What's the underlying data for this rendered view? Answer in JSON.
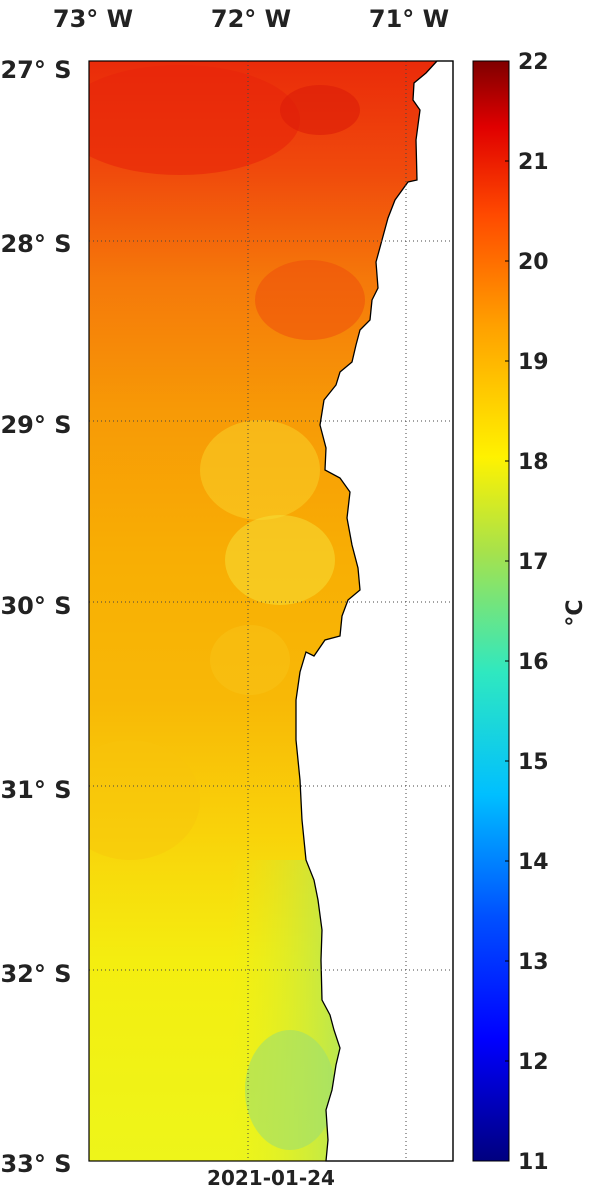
{
  "map": {
    "longitude_labels": [
      "73° W",
      "72° W",
      "71° W"
    ],
    "latitude_labels": [
      "27° S",
      "28° S",
      "29° S",
      "30° S",
      "31° S",
      "32° S",
      "33° S"
    ],
    "date": "2021-01-24",
    "grid": true
  },
  "colorbar": {
    "unit": "°C",
    "ticks": [
      "22",
      "21",
      "20",
      "19",
      "18",
      "17",
      "16",
      "15",
      "14",
      "13",
      "12",
      "11"
    ],
    "range": [
      11,
      22
    ],
    "colormap": "jet"
  },
  "colors": {
    "land": "#ffffff",
    "coastline": "#000000",
    "warm": "#ee3a0c",
    "mid": "#f7a000",
    "cool": "#c8e83a"
  }
}
